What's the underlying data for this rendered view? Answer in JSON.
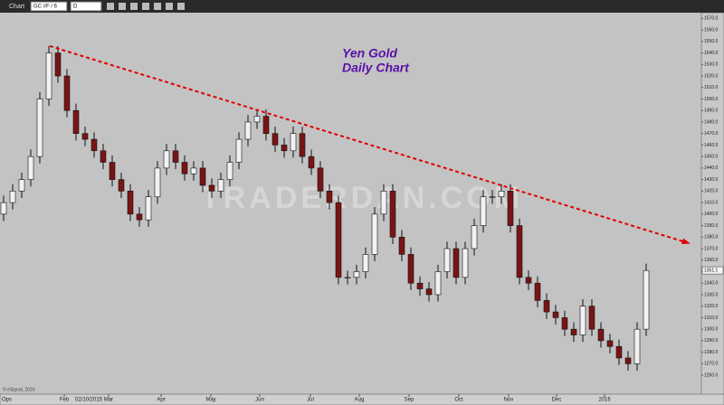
{
  "toolbar": {
    "window": "Chart",
    "symbol": "GC #F / 6",
    "interval": "D"
  },
  "chart_data": {
    "type": "candlestick",
    "title": [
      "Yen Gold",
      "Daily Chart"
    ],
    "watermark": "TRADERDAN.COM",
    "footer": "© eSignal, 2016",
    "corner_label": "Ops",
    "cursor_date": "02/10/2015",
    "last_price": 1351.1,
    "up_color": "#f2f2f2",
    "down_color": "#7a1414",
    "title_color": "#5a0fa8",
    "xlim": [
      -0.4,
      77.1
    ],
    "ylim": [
      1253,
      1575
    ],
    "xticks": [
      {
        "value": 6.7,
        "label": "Feb"
      },
      {
        "value": 11.6,
        "label": "Mar"
      },
      {
        "value": 17.4,
        "label": "Apr"
      },
      {
        "value": 22.9,
        "label": "May"
      },
      {
        "value": 28.3,
        "label": "Jun"
      },
      {
        "value": 33.9,
        "label": "Jul"
      },
      {
        "value": 39.3,
        "label": "Aug"
      },
      {
        "value": 44.8,
        "label": "Sep"
      },
      {
        "value": 50.3,
        "label": "Oct"
      },
      {
        "value": 55.8,
        "label": "Nov"
      },
      {
        "value": 61.1,
        "label": "Dec"
      },
      {
        "value": 66.4,
        "label": "2016"
      }
    ],
    "yticks": [
      {
        "value": 1260,
        "label": "1260.0"
      },
      {
        "value": 1270,
        "label": "1270.0"
      },
      {
        "value": 1280,
        "label": "1280.0"
      },
      {
        "value": 1290,
        "label": "1290.0"
      },
      {
        "value": 1300,
        "label": "1300.0"
      },
      {
        "value": 1310,
        "label": "1310.0"
      },
      {
        "value": 1320,
        "label": "1320.0"
      },
      {
        "value": 1330,
        "label": "1330.0"
      },
      {
        "value": 1340,
        "label": "1340.0"
      },
      {
        "value": 1350,
        "label": "1350.0"
      },
      {
        "value": 1360,
        "label": "1360.0"
      },
      {
        "value": 1370,
        "label": "1370.0"
      },
      {
        "value": 1380,
        "label": "1380.0"
      },
      {
        "value": 1390,
        "label": "1390.0"
      },
      {
        "value": 1400,
        "label": "1400.0"
      },
      {
        "value": 1410,
        "label": "1410.0"
      },
      {
        "value": 1420,
        "label": "1420.0"
      },
      {
        "value": 1430,
        "label": "1430.0"
      },
      {
        "value": 1440,
        "label": "1440.0"
      },
      {
        "value": 1450,
        "label": "1450.0"
      },
      {
        "value": 1460,
        "label": "1460.0"
      },
      {
        "value": 1470,
        "label": "1470.0"
      },
      {
        "value": 1480,
        "label": "1480.0"
      },
      {
        "value": 1490,
        "label": "1490.0"
      },
      {
        "value": 1500,
        "label": "1500.0"
      },
      {
        "value": 1510,
        "label": "1510.0"
      },
      {
        "value": 1520,
        "label": "1520.0"
      },
      {
        "value": 1530,
        "label": "1530.0"
      },
      {
        "value": 1540,
        "label": "1540.0"
      },
      {
        "value": 1550,
        "label": "1550.0"
      },
      {
        "value": 1560,
        "label": "1560.0"
      },
      {
        "value": 1570,
        "label": "1570.0"
      }
    ],
    "open": [
      1400,
      1410,
      1420,
      1430,
      1450,
      1500,
      1540,
      1520,
      1490,
      1470,
      1465,
      1455,
      1445,
      1430,
      1420,
      1400,
      1395,
      1415,
      1440,
      1455,
      1445,
      1435,
      1440,
      1425,
      1420,
      1430,
      1445,
      1465,
      1480,
      1485,
      1470,
      1460,
      1455,
      1470,
      1450,
      1440,
      1420,
      1410,
      1345,
      1345,
      1350,
      1365,
      1400,
      1420,
      1380,
      1365,
      1340,
      1335,
      1330,
      1350,
      1370,
      1345,
      1370,
      1390,
      1415,
      1415,
      1420,
      1390,
      1345,
      1340,
      1325,
      1315,
      1310,
      1300,
      1295,
      1320,
      1300,
      1290,
      1285,
      1275,
      1270,
      1300
    ],
    "high": [
      1416,
      1426,
      1436,
      1456,
      1506,
      1546,
      1546,
      1526,
      1496,
      1476,
      1471,
      1461,
      1451,
      1436,
      1426,
      1406,
      1421,
      1446,
      1461,
      1461,
      1451,
      1446,
      1446,
      1431,
      1436,
      1451,
      1471,
      1486,
      1491,
      1491,
      1476,
      1466,
      1476,
      1476,
      1456,
      1446,
      1426,
      1416,
      1351,
      1356,
      1371,
      1406,
      1426,
      1426,
      1386,
      1371,
      1346,
      1341,
      1356,
      1376,
      1376,
      1376,
      1396,
      1421,
      1421,
      1426,
      1426,
      1396,
      1351,
      1346,
      1331,
      1321,
      1316,
      1306,
      1326,
      1326,
      1306,
      1296,
      1291,
      1281,
      1306,
      1357
    ],
    "low": [
      1394,
      1404,
      1414,
      1424,
      1444,
      1494,
      1514,
      1484,
      1464,
      1459,
      1449,
      1439,
      1424,
      1414,
      1394,
      1389,
      1389,
      1409,
      1434,
      1439,
      1429,
      1429,
      1419,
      1414,
      1414,
      1424,
      1439,
      1459,
      1474,
      1464,
      1454,
      1449,
      1449,
      1444,
      1434,
      1414,
      1404,
      1339,
      1339,
      1339,
      1344,
      1359,
      1394,
      1374,
      1359,
      1334,
      1329,
      1324,
      1324,
      1344,
      1339,
      1339,
      1364,
      1384,
      1409,
      1409,
      1384,
      1339,
      1334,
      1319,
      1309,
      1304,
      1294,
      1289,
      1289,
      1294,
      1284,
      1279,
      1269,
      1264,
      1264,
      1294
    ],
    "close": [
      1410,
      1420,
      1430,
      1450,
      1500,
      1540,
      1520,
      1490,
      1470,
      1465,
      1455,
      1445,
      1430,
      1420,
      1400,
      1395,
      1415,
      1440,
      1455,
      1445,
      1435,
      1440,
      1425,
      1420,
      1430,
      1445,
      1465,
      1480,
      1485,
      1470,
      1460,
      1455,
      1470,
      1450,
      1440,
      1420,
      1410,
      1345,
      1345,
      1350,
      1365,
      1400,
      1420,
      1380,
      1365,
      1340,
      1335,
      1330,
      1350,
      1370,
      1345,
      1370,
      1390,
      1415,
      1415,
      1420,
      1390,
      1345,
      1340,
      1325,
      1315,
      1310,
      1300,
      1295,
      1320,
      1300,
      1290,
      1285,
      1275,
      1270,
      1300,
      1351
    ],
    "trendline": {
      "x": [
        5.1,
        75.6
      ],
      "y": [
        1546,
        1375
      ],
      "color": "#e00000"
    }
  }
}
